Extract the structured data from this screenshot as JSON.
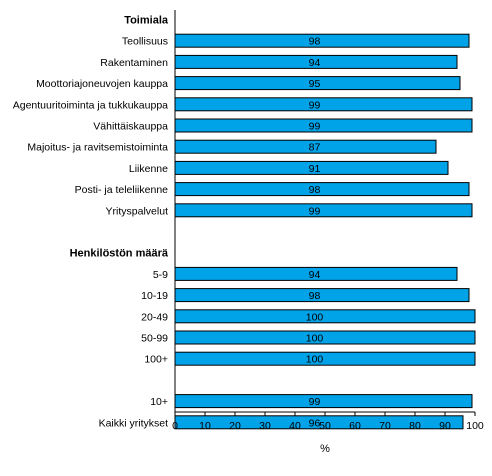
{
  "chart_data": {
    "type": "bar",
    "orientation": "horizontal",
    "title": "",
    "xlabel": "%",
    "ylabel": "",
    "xlim": [
      0,
      100
    ],
    "xticks": [
      0,
      10,
      20,
      30,
      40,
      50,
      60,
      70,
      80,
      90,
      100
    ],
    "grid": false,
    "legend": "none",
    "colors": {
      "bar_fill": "#00a2e8",
      "bar_stroke": "#000000",
      "text": "#000000",
      "axis": "#000000"
    },
    "rows": [
      {
        "kind": "header",
        "label": "Toimiala"
      },
      {
        "kind": "bar",
        "label": "Teollisuus",
        "value": 98
      },
      {
        "kind": "bar",
        "label": "Rakentaminen",
        "value": 94
      },
      {
        "kind": "bar",
        "label": "Moottoriajoneuvojen kauppa",
        "value": 95
      },
      {
        "kind": "bar",
        "label": "Agentuuritoiminta ja tukkukauppa",
        "value": 99
      },
      {
        "kind": "bar",
        "label": "Vähittäiskauppa",
        "value": 99
      },
      {
        "kind": "bar",
        "label": "Majoitus- ja ravitsemistoiminta",
        "value": 87
      },
      {
        "kind": "bar",
        "label": "Liikenne",
        "value": 91
      },
      {
        "kind": "bar",
        "label": "Posti- ja teleliikenne",
        "value": 98
      },
      {
        "kind": "bar",
        "label": "Yrityspalvelut",
        "value": 99
      },
      {
        "kind": "spacer",
        "label": ""
      },
      {
        "kind": "header",
        "label": "Henkilöstön määrä"
      },
      {
        "kind": "bar",
        "label": "5-9",
        "value": 94
      },
      {
        "kind": "bar",
        "label": "10-19",
        "value": 98
      },
      {
        "kind": "bar",
        "label": "20-49",
        "value": 100
      },
      {
        "kind": "bar",
        "label": "50-99",
        "value": 100
      },
      {
        "kind": "bar",
        "label": "100+",
        "value": 100
      },
      {
        "kind": "spacer",
        "label": ""
      },
      {
        "kind": "bar",
        "label": "10+",
        "value": 99
      },
      {
        "kind": "bar",
        "label": "Kaikki yritykset",
        "value": 96
      }
    ]
  }
}
